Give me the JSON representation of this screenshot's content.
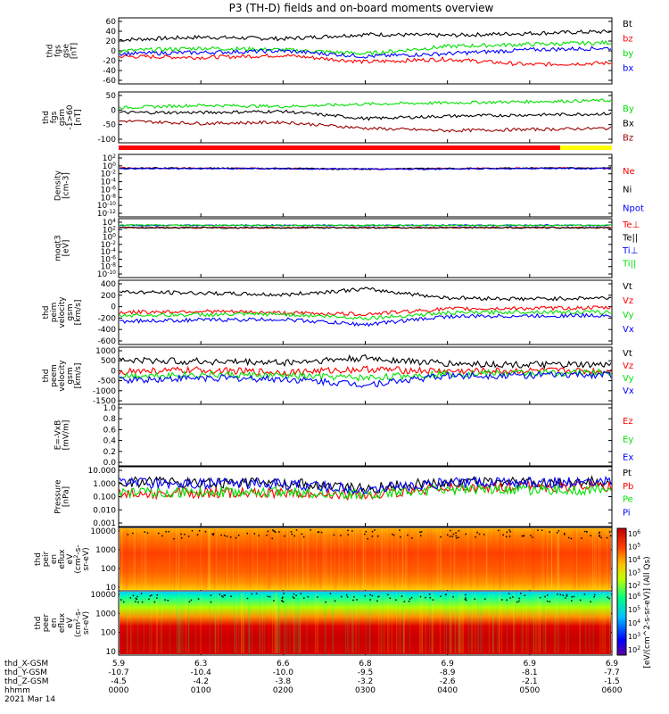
{
  "title": "P3 (TH-D) fields and on-board moments overview",
  "colors": {
    "black": "#000000",
    "red": "#ff0000",
    "green": "#00e000",
    "blue": "#0000ff",
    "darkred": "#9b0000",
    "yellow": "#ffff00"
  },
  "chart_data": [
    {
      "type": "line",
      "ylabel": [
        "thd",
        "fgs",
        "gse",
        "[nT]"
      ],
      "yticks": [
        "60",
        "40",
        "20",
        "0",
        "-20",
        "-40",
        "-60"
      ],
      "ylim": [
        -60,
        60
      ],
      "x": [
        5.9,
        6.3,
        6.6,
        6.8,
        6.9,
        6.9,
        6.9
      ],
      "series": [
        {
          "name": "Bt",
          "color": "black",
          "values": [
            20,
            25,
            22,
            30,
            28,
            32,
            35
          ]
        },
        {
          "name": "bz",
          "color": "red",
          "values": [
            -10,
            -12,
            -8,
            -20,
            -15,
            -25,
            -22
          ]
        },
        {
          "name": "by",
          "color": "green",
          "values": [
            0,
            5,
            2,
            -5,
            8,
            12,
            15
          ]
        },
        {
          "name": "bx",
          "color": "blue",
          "values": [
            -5,
            -3,
            0,
            -10,
            -5,
            2,
            5
          ]
        }
      ]
    },
    {
      "type": "line",
      "ylabel": [
        "thd",
        "fgs",
        "gsm",
        "-1&gt;60",
        "[nT]"
      ],
      "yticks": [
        "50",
        "0",
        "-50",
        "-100"
      ],
      "ylim": [
        -130,
        80
      ],
      "x": [
        5.9,
        6.3,
        6.6,
        6.8,
        6.9,
        6.9,
        6.9
      ],
      "series": [
        {
          "name": "By",
          "color": "green",
          "values": [
            15,
            25,
            20,
            30,
            35,
            40,
            45
          ]
        },
        {
          "name": "Bx",
          "color": "black",
          "values": [
            -5,
            -5,
            0,
            -30,
            -20,
            -15,
            -10
          ]
        },
        {
          "name": "Bz",
          "color": "darkred",
          "values": [
            -40,
            -50,
            -45,
            -70,
            -80,
            -75,
            -70
          ]
        }
      ]
    },
    {
      "type": "line",
      "ylabel": [
        "Density",
        "[cm-3]"
      ],
      "yticks": [
        "10^2",
        "10^0",
        "10^-2",
        "10^-4",
        "10^-6",
        "10^-8",
        "10^-10",
        "10^-12"
      ],
      "log": true,
      "series": [
        {
          "name": "Ne",
          "color": "red",
          "values": [
            0.5,
            0.5,
            0.4,
            0.3,
            0.4,
            0.5,
            0.5
          ]
        },
        {
          "name": "Ni",
          "color": "black",
          "values": [
            0.5,
            0.5,
            0.4,
            0.3,
            0.4,
            0.5,
            0.5
          ]
        },
        {
          "name": "Npot",
          "color": "blue",
          "values": [
            0.4,
            0.4,
            0.4,
            0.3,
            0.3,
            0.4,
            0.4
          ]
        }
      ]
    },
    {
      "type": "line",
      "ylabel": [
        "moqt3",
        "[eV]"
      ],
      "yticks": [
        "10^4",
        "10^2",
        "10^0",
        "10^-2",
        "10^-4",
        "10^-6",
        "10^-8",
        "10^-10"
      ],
      "log": true,
      "series": [
        {
          "name": "Te⊥",
          "color": "red",
          "values": [
            500,
            500,
            500,
            500,
            500,
            500,
            500
          ]
        },
        {
          "name": "Te||",
          "color": "black",
          "values": [
            500,
            500,
            500,
            500,
            500,
            500,
            500
          ]
        },
        {
          "name": "Ti⊥",
          "color": "blue",
          "values": [
            2000,
            2000,
            2000,
            2000,
            2000,
            2000,
            2000
          ]
        },
        {
          "name": "Ti||",
          "color": "green",
          "values": [
            2000,
            2000,
            2000,
            2000,
            2000,
            2000,
            2000
          ]
        }
      ]
    },
    {
      "type": "line",
      "ylabel": [
        "thd",
        "peim",
        "velocity",
        "gsm",
        "[km/s]"
      ],
      "yticks": [
        "400",
        "200",
        "0",
        "-200",
        "-400",
        "-600"
      ],
      "ylim": [
        -600,
        500
      ],
      "series": [
        {
          "name": "Vt",
          "color": "black",
          "values": [
            300,
            280,
            250,
            350,
            200,
            180,
            200
          ]
        },
        {
          "name": "Vz",
          "color": "red",
          "values": [
            -50,
            -30,
            -60,
            -80,
            10,
            20,
            30
          ]
        },
        {
          "name": "Vy",
          "color": "green",
          "values": [
            -100,
            -90,
            -80,
            -150,
            -60,
            -40,
            -50
          ]
        },
        {
          "name": "Vx",
          "color": "blue",
          "values": [
            -200,
            -180,
            -170,
            -260,
            -120,
            -110,
            -100
          ]
        }
      ]
    },
    {
      "type": "line",
      "ylabel": [
        "thd",
        "peem",
        "velocity",
        "gsm",
        "[km/s]"
      ],
      "yticks": [
        "1000",
        "500",
        "0",
        "-500",
        "-1000",
        "-1500"
      ],
      "ylim": [
        -1500,
        1100
      ],
      "series": [
        {
          "name": "Vt",
          "color": "black",
          "values": [
            500,
            450,
            400,
            600,
            350,
            300,
            280
          ]
        },
        {
          "name": "Vz",
          "color": "red",
          "values": [
            0,
            50,
            -50,
            100,
            0,
            20,
            10
          ]
        },
        {
          "name": "Vy",
          "color": "green",
          "values": [
            -200,
            -150,
            -200,
            -300,
            -100,
            -80,
            -60
          ]
        },
        {
          "name": "Vx",
          "color": "blue",
          "values": [
            -400,
            -300,
            -350,
            -600,
            -200,
            -180,
            -150
          ]
        }
      ]
    },
    {
      "type": "line",
      "ylabel": [
        "E=-VxB",
        "[mV/m]"
      ],
      "yticks": [
        "1.0",
        "0.8",
        "0.6",
        "0.4",
        "0.2",
        "0.0"
      ],
      "ylim": [
        0,
        1
      ],
      "series": [
        {
          "name": "Ez",
          "color": "red",
          "values": []
        },
        {
          "name": "Ey",
          "color": "green",
          "values": []
        },
        {
          "name": "Ex",
          "color": "blue",
          "values": []
        }
      ]
    },
    {
      "type": "line",
      "ylabel": [
        "Pressure",
        "[nPa]"
      ],
      "yticks": [
        "10.000",
        "1.000",
        "0.100",
        "0.010",
        "0.001"
      ],
      "log": true,
      "series": [
        {
          "name": "Pt",
          "color": "black",
          "values": [
            0.9,
            0.9,
            0.8,
            0.3,
            0.9,
            1.0,
            1.0
          ]
        },
        {
          "name": "Pb",
          "color": "red",
          "values": [
            0.15,
            0.18,
            0.2,
            0.1,
            0.35,
            0.45,
            0.5
          ]
        },
        {
          "name": "Pe",
          "color": "green",
          "values": [
            0.2,
            0.2,
            0.2,
            0.15,
            0.3,
            0.3,
            0.3
          ]
        },
        {
          "name": "Pi",
          "color": "blue",
          "values": [
            0.8,
            0.8,
            0.7,
            0.25,
            0.8,
            0.9,
            0.9
          ]
        }
      ]
    },
    {
      "type": "heatmap",
      "ylabel": [
        "thd",
        "peir",
        "en",
        "eflux",
        "eV",
        "(cm^2-s-",
        "sr-eV)"
      ],
      "yticks": [
        "10000",
        "1000",
        "100",
        "10"
      ]
    },
    {
      "type": "heatmap",
      "ylabel": [
        "thd",
        "peer",
        "en",
        "eflux",
        "eV",
        "(cm^2-s-",
        "sr-eV)"
      ],
      "yticks": [
        "10000",
        "1000",
        "100",
        "10"
      ]
    }
  ],
  "colorbar": {
    "label": "[eV/(cm^2-s-sr-eV)] (All Qs)",
    "ticks": [
      "10^6",
      "10^5",
      "10^4",
      "10^3",
      "10^2"
    ]
  },
  "xaxis": {
    "row_labels": [
      "thd_X-GSM",
      "thd_Y-GSM",
      "thd_Z-GSM",
      "hhmm"
    ],
    "date": "2021 Mar 14",
    "columns": [
      [
        "5.9",
        "-10.7",
        "-4.5",
        "0000"
      ],
      [
        "6.3",
        "-10.4",
        "-4.2",
        "0100"
      ],
      [
        "6.6",
        "-10.0",
        "-3.8",
        "0200"
      ],
      [
        "6.8",
        "-9.5",
        "-3.2",
        "0300"
      ],
      [
        "6.9",
        "-8.9",
        "-2.6",
        "0400"
      ],
      [
        "6.9",
        "-8.1",
        "-2.1",
        "0500"
      ],
      [
        "6.9",
        "-7.7",
        "-1.5",
        "0600"
      ]
    ]
  }
}
